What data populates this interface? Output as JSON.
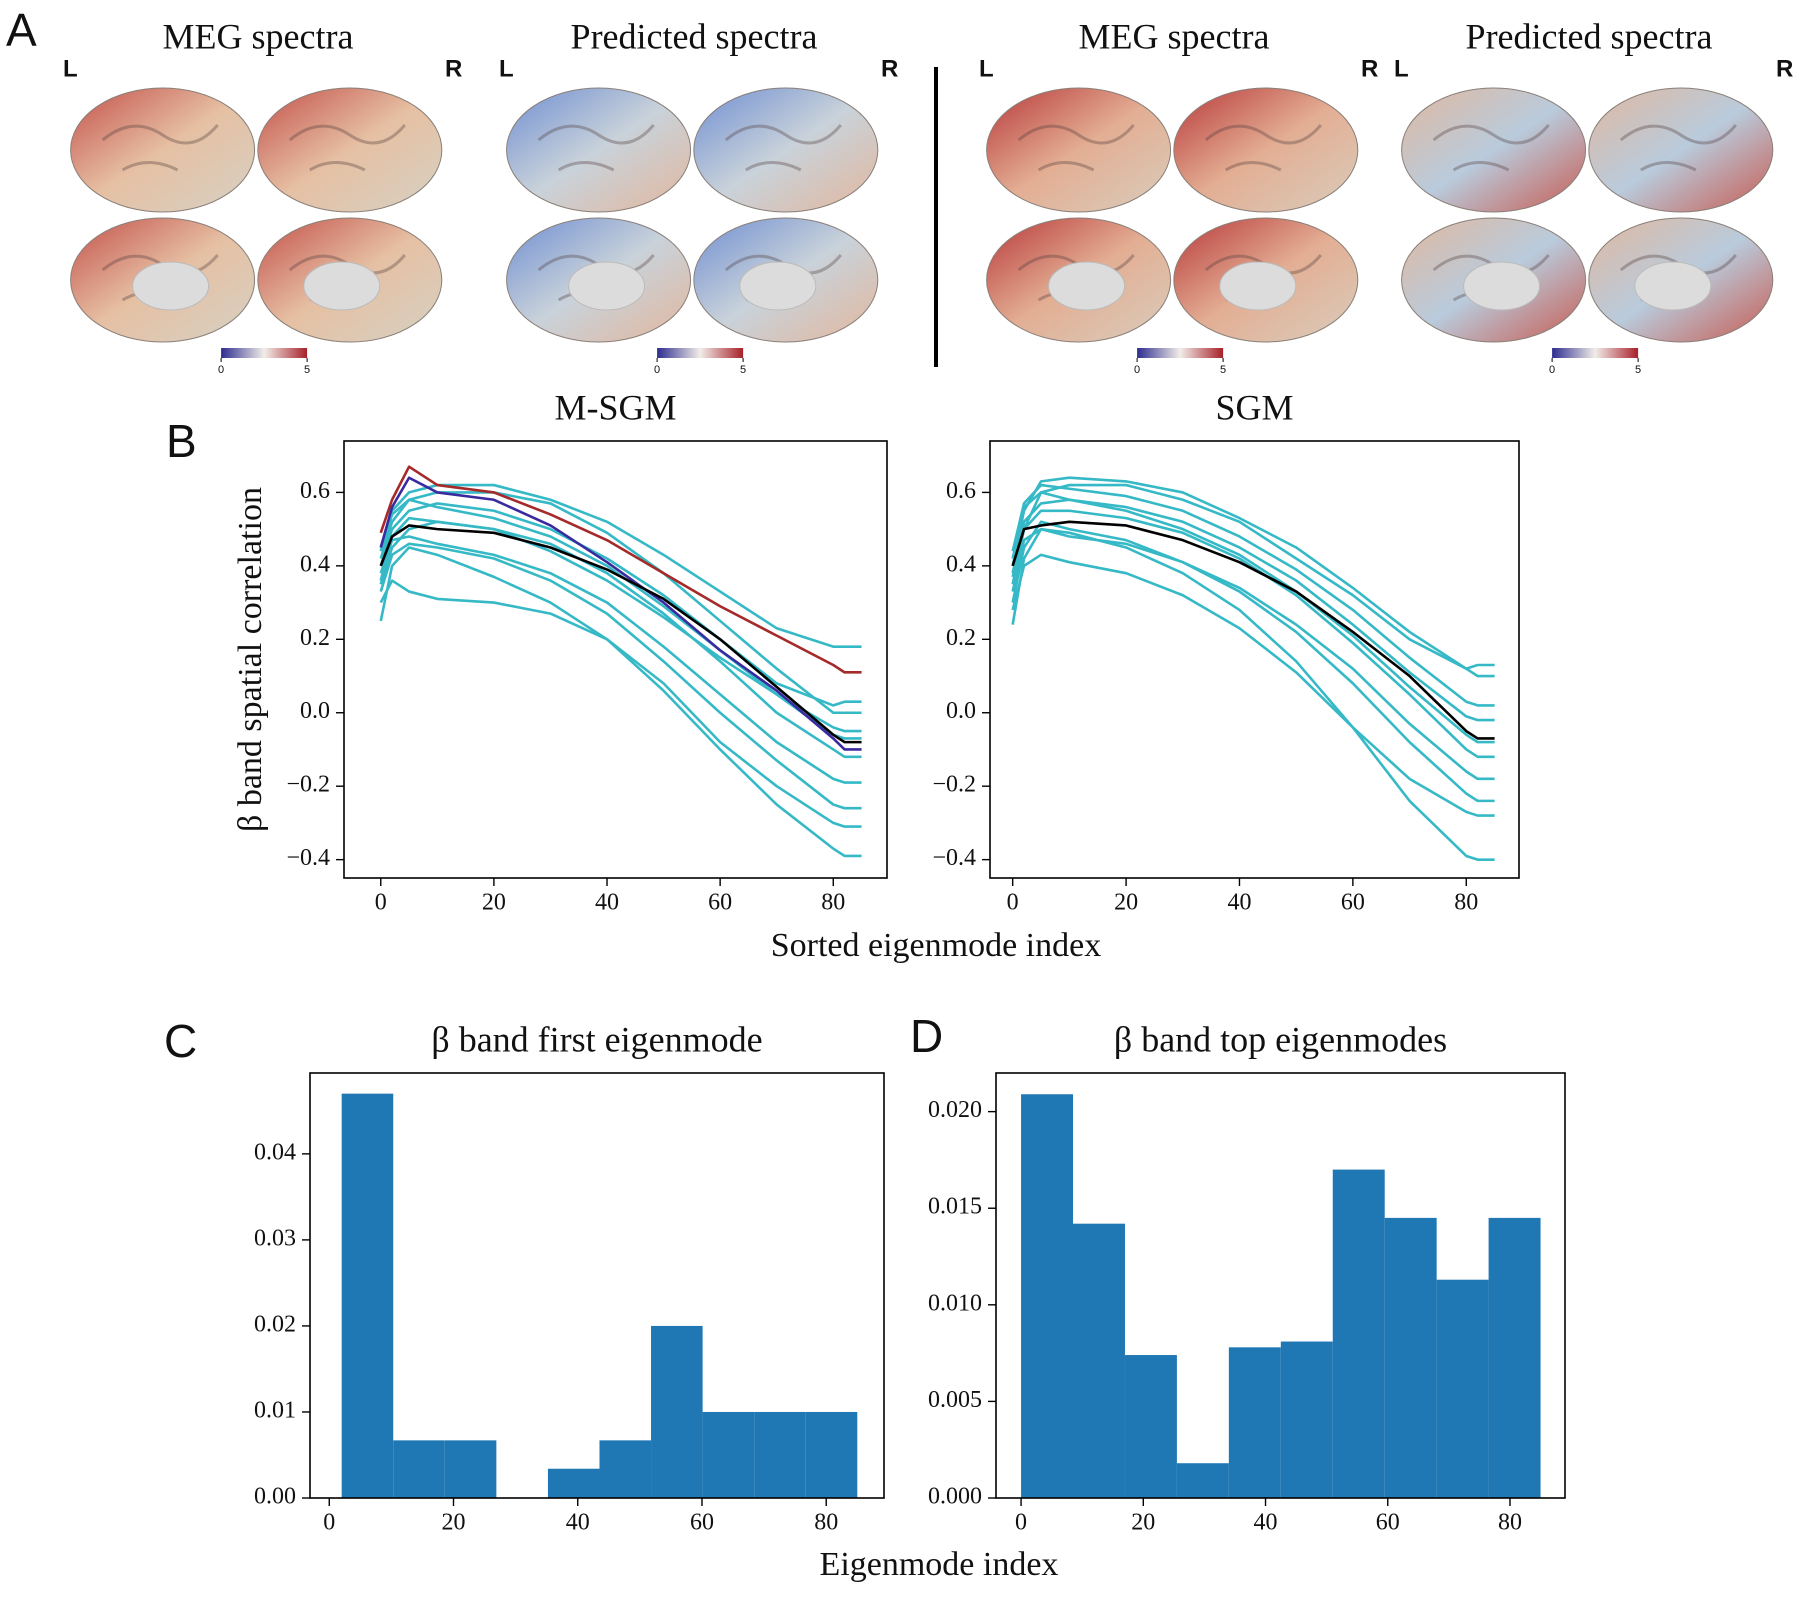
{
  "brain_figure": {
    "panel_label": "A",
    "panels": [
      {
        "title": "MEG spectra",
        "left": "L",
        "right": "R",
        "colorbar_ticks": [
          0,
          5
        ],
        "colors": [
          "#c4504b",
          "#e6c0a3",
          "#d5d1c4"
        ]
      },
      {
        "title": "Predicted spectra",
        "left": "L",
        "right": "R",
        "colorbar_ticks": [
          0,
          5
        ],
        "colors": [
          "#6f8fd2",
          "#c9d2da",
          "#e2b79d"
        ]
      },
      {
        "title": "MEG spectra",
        "left": "L",
        "right": "R",
        "colorbar_ticks": [
          0,
          5
        ],
        "colors": [
          "#b8383a",
          "#e3ae93",
          "#d9cdbd"
        ]
      },
      {
        "title": "Predicted spectra",
        "left": "L",
        "right": "R",
        "colorbar_ticks": [
          0,
          5
        ],
        "colors": [
          "#e0b8a0",
          "#b9cbdc",
          "#c85a50"
        ]
      }
    ]
  },
  "chart_data": [
    {
      "type": "line",
      "panel_label": "B",
      "title": "M-SGM",
      "ylabel": "β band spatial correlation",
      "xlabel": "Sorted eigenmode index",
      "x": [
        0,
        2,
        5,
        10,
        20,
        30,
        40,
        50,
        60,
        70,
        80,
        82,
        85
      ],
      "xlim": [
        -6.5,
        89.5
      ],
      "xticks": [
        0,
        20,
        40,
        60,
        80
      ],
      "ylim": [
        -0.45,
        0.74
      ],
      "yticks": [
        {
          "value": -0.4,
          "label": "−0.4"
        },
        {
          "value": -0.2,
          "label": "−0.2"
        },
        {
          "value": 0,
          "label": "0.0"
        },
        0.2,
        0.4,
        0.6
      ],
      "series": [
        {
          "color": "#36b9c6",
          "values": [
            0.25,
            0.4,
            0.45,
            0.43,
            0.37,
            0.3,
            0.2,
            0.06,
            -0.1,
            -0.25,
            -0.37,
            -0.39,
            -0.39
          ]
        },
        {
          "color": "#36b9c6",
          "values": [
            0.35,
            0.45,
            0.5,
            0.52,
            0.5,
            0.44,
            0.36,
            0.26,
            0.15,
            0.05,
            -0.04,
            -0.05,
            -0.05
          ]
        },
        {
          "color": "#36b9c6",
          "values": [
            0.45,
            0.55,
            0.6,
            0.62,
            0.62,
            0.58,
            0.52,
            0.43,
            0.33,
            0.23,
            0.18,
            0.18,
            0.18
          ]
        },
        {
          "color": "#36b9c6",
          "values": [
            0.3,
            0.36,
            0.33,
            0.31,
            0.3,
            0.27,
            0.2,
            0.08,
            -0.08,
            -0.2,
            -0.3,
            -0.31,
            -0.31
          ]
        },
        {
          "color": "#36b9c6",
          "values": [
            0.4,
            0.5,
            0.55,
            0.57,
            0.55,
            0.5,
            0.42,
            0.32,
            0.2,
            0.08,
            0.02,
            0.03,
            0.03
          ]
        },
        {
          "color": "#36b9c6",
          "values": [
            0.38,
            0.47,
            0.48,
            0.46,
            0.43,
            0.38,
            0.3,
            0.18,
            0.05,
            -0.08,
            -0.18,
            -0.19,
            -0.19
          ]
        },
        {
          "color": "#36b9c6",
          "values": [
            0.42,
            0.52,
            0.58,
            0.6,
            0.6,
            0.57,
            0.49,
            0.38,
            0.25,
            0.12,
            0.0,
            0.0,
            0.0
          ]
        },
        {
          "color": "#36b9c6",
          "values": [
            0.33,
            0.43,
            0.46,
            0.45,
            0.42,
            0.36,
            0.27,
            0.14,
            0.0,
            -0.13,
            -0.25,
            -0.26,
            -0.26
          ]
        },
        {
          "color": "#36b9c6",
          "values": [
            0.36,
            0.48,
            0.53,
            0.52,
            0.5,
            0.46,
            0.38,
            0.27,
            0.14,
            0.0,
            -0.1,
            -0.12,
            -0.12
          ]
        },
        {
          "color": "#36b9c6",
          "values": [
            0.44,
            0.54,
            0.58,
            0.56,
            0.53,
            0.48,
            0.4,
            0.29,
            0.17,
            0.05,
            -0.06,
            -0.07,
            -0.07
          ]
        },
        {
          "color": "#a52a2a",
          "values": [
            0.49,
            0.58,
            0.67,
            0.62,
            0.6,
            0.54,
            0.47,
            0.38,
            0.29,
            0.21,
            0.13,
            0.11,
            0.11
          ]
        },
        {
          "color": "#3a2aa0",
          "values": [
            0.45,
            0.56,
            0.64,
            0.6,
            0.58,
            0.51,
            0.41,
            0.3,
            0.17,
            0.06,
            -0.07,
            -0.1,
            -0.1
          ]
        },
        {
          "color": "#000000",
          "values": [
            0.4,
            0.48,
            0.51,
            0.5,
            0.49,
            0.45,
            0.39,
            0.31,
            0.2,
            0.07,
            -0.06,
            -0.08,
            -0.08
          ]
        }
      ]
    },
    {
      "type": "line",
      "title": "SGM",
      "x": [
        0,
        2,
        5,
        10,
        20,
        30,
        40,
        50,
        60,
        70,
        80,
        82,
        85
      ],
      "xlim": [
        -4,
        89.3
      ],
      "xticks": [
        0,
        20,
        40,
        60,
        80
      ],
      "ylim": [
        -0.45,
        0.74
      ],
      "yticks": [
        {
          "value": -0.4,
          "label": "−0.4"
        },
        {
          "value": -0.2,
          "label": "−0.2"
        },
        {
          "value": 0,
          "label": "0.0"
        },
        0.2,
        0.4,
        0.6
      ],
      "series": [
        {
          "color": "#36b9c6",
          "values": [
            0.24,
            0.42,
            0.5,
            0.49,
            0.45,
            0.38,
            0.28,
            0.14,
            -0.04,
            -0.24,
            -0.39,
            -0.4,
            -0.4
          ]
        },
        {
          "color": "#36b9c6",
          "values": [
            0.35,
            0.5,
            0.6,
            0.62,
            0.62,
            0.58,
            0.52,
            0.42,
            0.32,
            0.2,
            0.12,
            0.13,
            0.13
          ]
        },
        {
          "color": "#36b9c6",
          "values": [
            0.4,
            0.55,
            0.63,
            0.64,
            0.63,
            0.6,
            0.53,
            0.45,
            0.34,
            0.22,
            0.12,
            0.1,
            0.1
          ]
        },
        {
          "color": "#36b9c6",
          "values": [
            0.3,
            0.45,
            0.52,
            0.5,
            0.47,
            0.41,
            0.33,
            0.22,
            0.08,
            -0.08,
            -0.22,
            -0.24,
            -0.24
          ]
        },
        {
          "color": "#36b9c6",
          "values": [
            0.38,
            0.52,
            0.57,
            0.58,
            0.56,
            0.52,
            0.45,
            0.36,
            0.24,
            0.11,
            -0.01,
            -0.02,
            -0.02
          ]
        },
        {
          "color": "#36b9c6",
          "values": [
            0.33,
            0.47,
            0.5,
            0.48,
            0.46,
            0.41,
            0.34,
            0.24,
            0.12,
            -0.03,
            -0.16,
            -0.18,
            -0.18
          ]
        },
        {
          "color": "#36b9c6",
          "values": [
            0.42,
            0.56,
            0.6,
            0.58,
            0.55,
            0.5,
            0.43,
            0.33,
            0.21,
            0.07,
            -0.06,
            -0.08,
            -0.08
          ]
        },
        {
          "color": "#36b9c6",
          "values": [
            0.28,
            0.4,
            0.43,
            0.41,
            0.38,
            0.32,
            0.23,
            0.11,
            -0.04,
            -0.18,
            -0.27,
            -0.28,
            -0.28
          ]
        },
        {
          "color": "#36b9c6",
          "values": [
            0.37,
            0.5,
            0.55,
            0.55,
            0.53,
            0.49,
            0.42,
            0.32,
            0.19,
            0.05,
            -0.1,
            -0.12,
            -0.12
          ]
        },
        {
          "color": "#36b9c6",
          "values": [
            0.44,
            0.57,
            0.62,
            0.61,
            0.59,
            0.55,
            0.48,
            0.39,
            0.28,
            0.15,
            0.03,
            0.02,
            0.02
          ]
        },
        {
          "color": "#000000",
          "values": [
            0.4,
            0.5,
            0.51,
            0.52,
            0.51,
            0.47,
            0.41,
            0.33,
            0.22,
            0.1,
            -0.05,
            -0.07,
            -0.07
          ]
        }
      ]
    },
    {
      "type": "histogram",
      "panel_label": "C",
      "title": "β band first eigenmode",
      "xlabel": "Eigenmode index",
      "color": "#1f77b4",
      "bins": [
        2,
        10.3,
        18.6,
        26.9,
        35.2,
        43.5,
        51.8,
        60.1,
        68.4,
        76.7,
        85
      ],
      "counts": [
        0.047,
        0.0067,
        0.0067,
        0,
        0.0034,
        0.0067,
        0.02,
        0.01,
        0.01,
        0.01
      ],
      "xlim": [
        -3.1,
        89.3
      ],
      "xticks": [
        0,
        20,
        40,
        60,
        80
      ],
      "ylim": [
        0,
        0.0494
      ],
      "yticks": [
        {
          "value": 0,
          "label": "0.00"
        },
        {
          "value": 0.01,
          "label": "0.01"
        },
        {
          "value": 0.02,
          "label": "0.02"
        },
        {
          "value": 0.03,
          "label": "0.03"
        },
        {
          "value": 0.04,
          "label": "0.04"
        }
      ]
    },
    {
      "type": "histogram",
      "panel_label": "D",
      "title": "β band top eigenmodes",
      "color": "#1f77b4",
      "bins": [
        0,
        8.5,
        17,
        25.5,
        34,
        42.5,
        51,
        59.5,
        68,
        76.5,
        85
      ],
      "counts": [
        0.0209,
        0.0142,
        0.0074,
        0.0018,
        0.0078,
        0.0081,
        0.017,
        0.0145,
        0.0113,
        0.0145
      ],
      "xlim": [
        -4.1,
        89
      ],
      "xticks": [
        0,
        20,
        40,
        60,
        80
      ],
      "ylim": [
        0,
        0.022
      ],
      "yticks": [
        {
          "value": 0,
          "label": "0.000"
        },
        {
          "value": 0.005,
          "label": "0.005"
        },
        {
          "value": 0.01,
          "label": "0.010"
        },
        {
          "value": 0.015,
          "label": "0.015"
        },
        {
          "value": 0.02,
          "label": "0.020"
        }
      ]
    }
  ]
}
